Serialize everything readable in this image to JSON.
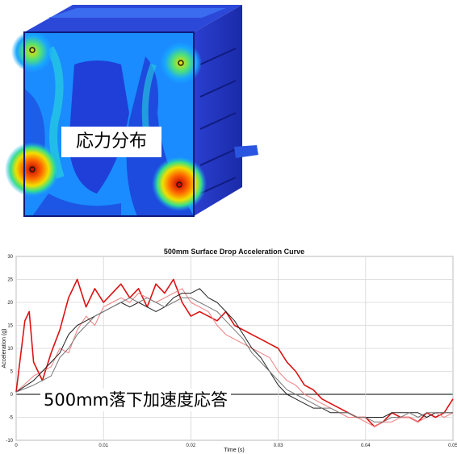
{
  "fea_image": {
    "label": "応力分布"
  },
  "overlay_label": "500mm落下加速度応答",
  "colors": {
    "background_blue": "#1f3fd8",
    "hot_red": "#e01010",
    "series_red": "#dd1111",
    "series_salmon": "#f08080",
    "series_black": "#222222",
    "series_gray": "#777777"
  },
  "chart_data": {
    "type": "line",
    "title": "500mm Surface Drop Acceleration Curve",
    "xlabel": "Time (s)",
    "ylabel": "Acceleration (g)",
    "xlim": [
      0,
      0.05
    ],
    "ylim": [
      -10,
      30
    ],
    "xticks": [
      "0",
      "0.01",
      "0.02",
      "0.03",
      "0.04",
      "0.05"
    ],
    "yticks": [
      "-10",
      "-5",
      "0",
      "5",
      "10",
      "15",
      "20",
      "25",
      "30"
    ],
    "grid": true,
    "series": [
      {
        "color": "#dd1111",
        "x": [
          0,
          0.001,
          0.0015,
          0.002,
          0.003,
          0.004,
          0.005,
          0.006,
          0.007,
          0.008,
          0.009,
          0.01,
          0.011,
          0.012,
          0.013,
          0.014,
          0.015,
          0.016,
          0.017,
          0.018,
          0.019,
          0.02,
          0.021,
          0.022,
          0.023,
          0.024,
          0.025,
          0.026,
          0.027,
          0.028,
          0.029,
          0.03,
          0.031,
          0.032,
          0.033,
          0.034,
          0.035,
          0.036,
          0.037,
          0.038,
          0.039,
          0.04,
          0.041,
          0.042,
          0.043,
          0.044,
          0.045,
          0.046,
          0.047,
          0.048,
          0.049,
          0.05
        ],
        "y": [
          0.5,
          16,
          18,
          7,
          3,
          9,
          14,
          21,
          25,
          19,
          23,
          20,
          22,
          24,
          21,
          23,
          19,
          24,
          22,
          25,
          20,
          17,
          18,
          17,
          16,
          18,
          15,
          14,
          13,
          12,
          11,
          10,
          7,
          5,
          2,
          1,
          -1,
          -2,
          -3,
          -4,
          -5,
          -5,
          -7,
          -6,
          -4,
          -5,
          -5,
          -6,
          -4,
          -5,
          -4,
          -1
        ]
      },
      {
        "color": "#f08080",
        "x": [
          0,
          0.002,
          0.004,
          0.005,
          0.006,
          0.007,
          0.008,
          0.009,
          0.01,
          0.011,
          0.012,
          0.013,
          0.014,
          0.015,
          0.016,
          0.017,
          0.018,
          0.019,
          0.02,
          0.021,
          0.022,
          0.023,
          0.024,
          0.025,
          0.026,
          0.027,
          0.028,
          0.029,
          0.03,
          0.031,
          0.032,
          0.033,
          0.034,
          0.035,
          0.036,
          0.037,
          0.038,
          0.039,
          0.04,
          0.041,
          0.042,
          0.043,
          0.044,
          0.045,
          0.046,
          0.047,
          0.048,
          0.049,
          0.05
        ],
        "y": [
          0.5,
          4,
          6,
          10,
          9,
          14,
          17,
          15,
          19,
          20,
          21,
          20,
          22,
          21,
          20,
          21,
          22,
          23,
          20,
          19,
          18,
          15,
          13,
          12,
          11,
          10,
          9,
          8,
          5,
          3,
          2,
          0,
          -1,
          -2,
          -3,
          -4,
          -5,
          -5,
          -6,
          -7,
          -6,
          -6,
          -5,
          -5,
          -6,
          -5,
          -4,
          -5,
          -4
        ]
      },
      {
        "color": "#222222",
        "x": [
          0,
          0.002,
          0.003,
          0.004,
          0.005,
          0.006,
          0.007,
          0.008,
          0.009,
          0.01,
          0.011,
          0.012,
          0.013,
          0.014,
          0.015,
          0.016,
          0.017,
          0.018,
          0.019,
          0.02,
          0.021,
          0.022,
          0.023,
          0.024,
          0.025,
          0.026,
          0.027,
          0.028,
          0.029,
          0.03,
          0.031,
          0.032,
          0.033,
          0.034,
          0.035,
          0.036,
          0.037,
          0.038,
          0.039,
          0.04,
          0.041,
          0.042,
          0.043,
          0.044,
          0.045,
          0.046,
          0.047,
          0.048,
          0.049,
          0.05
        ],
        "y": [
          0.5,
          3,
          5,
          7,
          9,
          13,
          15,
          16,
          17,
          18,
          19,
          20,
          19,
          20,
          19,
          18,
          19,
          21,
          22,
          22,
          23,
          21,
          20,
          18,
          16,
          13,
          10,
          8,
          5,
          2,
          0,
          -1,
          -2,
          -3,
          -3,
          -4,
          -4,
          -4,
          -5,
          -5,
          -5,
          -5,
          -4,
          -4,
          -4,
          -4,
          -5,
          -4,
          -4,
          -4
        ]
      },
      {
        "color": "#777777",
        "x": [
          0,
          0.002,
          0.004,
          0.005,
          0.006,
          0.007,
          0.008,
          0.009,
          0.01,
          0.011,
          0.012,
          0.013,
          0.014,
          0.015,
          0.016,
          0.017,
          0.018,
          0.019,
          0.02,
          0.021,
          0.022,
          0.023,
          0.024,
          0.025,
          0.026,
          0.027,
          0.028,
          0.029,
          0.03,
          0.031,
          0.032,
          0.033,
          0.034,
          0.035,
          0.036,
          0.037,
          0.038,
          0.039,
          0.04,
          0.041,
          0.042,
          0.043,
          0.044,
          0.045,
          0.046,
          0.047,
          0.048,
          0.049,
          0.05
        ],
        "y": [
          0.5,
          2,
          4,
          8,
          10,
          13,
          15,
          17,
          18,
          19,
          20,
          21,
          20,
          21,
          20,
          19,
          20,
          21,
          21,
          20,
          19,
          18,
          16,
          14,
          12,
          9,
          7,
          5,
          3,
          1,
          0,
          -1,
          -2,
          -3,
          -3,
          -4,
          -4,
          -5,
          -5,
          -6,
          -6,
          -5,
          -5,
          -4,
          -5,
          -4,
          -4,
          -4,
          -4
        ]
      }
    ]
  }
}
